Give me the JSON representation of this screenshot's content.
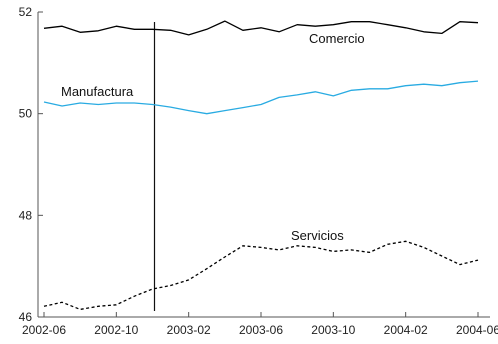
{
  "chart_data": {
    "type": "line",
    "x": [
      "2002-06",
      "2002-07",
      "2002-08",
      "2002-09",
      "2002-10",
      "2002-11",
      "2002-12",
      "2003-01",
      "2003-02",
      "2003-03",
      "2003-04",
      "2003-05",
      "2003-06",
      "2003-07",
      "2003-08",
      "2003-09",
      "2003-10",
      "2003-11",
      "2003-12",
      "2004-01",
      "2004-02",
      "2004-03",
      "2004-04",
      "2004-05",
      "2004-06"
    ],
    "xticks": [
      "2002-06",
      "2002-10",
      "2003-02",
      "2003-06",
      "2003-10",
      "2004-02",
      "2004-06"
    ],
    "yticks": [
      46,
      48,
      50,
      52
    ],
    "ylim": [
      46,
      52
    ],
    "vline_x": "2002-12",
    "series": [
      {
        "name": "Comercio",
        "color": "#000000",
        "style": "solid",
        "values": [
          51.68,
          51.72,
          51.6,
          51.63,
          51.72,
          51.66,
          51.66,
          51.64,
          51.55,
          51.66,
          51.82,
          51.64,
          51.69,
          51.61,
          51.75,
          51.72,
          51.75,
          51.81,
          51.81,
          51.75,
          51.69,
          51.61,
          51.58,
          51.81,
          51.79
        ]
      },
      {
        "name": "Manufactura",
        "color": "#29abe2",
        "style": "solid",
        "values": [
          50.23,
          50.15,
          50.21,
          50.18,
          50.21,
          50.21,
          50.18,
          50.13,
          50.06,
          50.0,
          50.06,
          50.12,
          50.18,
          50.32,
          50.37,
          50.43,
          50.35,
          50.46,
          50.49,
          50.49,
          50.55,
          50.58,
          50.55,
          50.61,
          50.64
        ]
      },
      {
        "name": "Servicios",
        "color": "#000000",
        "style": "dashed",
        "values": [
          46.21,
          46.29,
          46.15,
          46.21,
          46.24,
          46.41,
          46.55,
          46.62,
          46.73,
          46.95,
          47.18,
          47.4,
          47.37,
          47.32,
          47.4,
          47.37,
          47.29,
          47.32,
          47.27,
          47.43,
          47.49,
          47.37,
          47.2,
          47.03,
          47.12
        ]
      }
    ]
  }
}
